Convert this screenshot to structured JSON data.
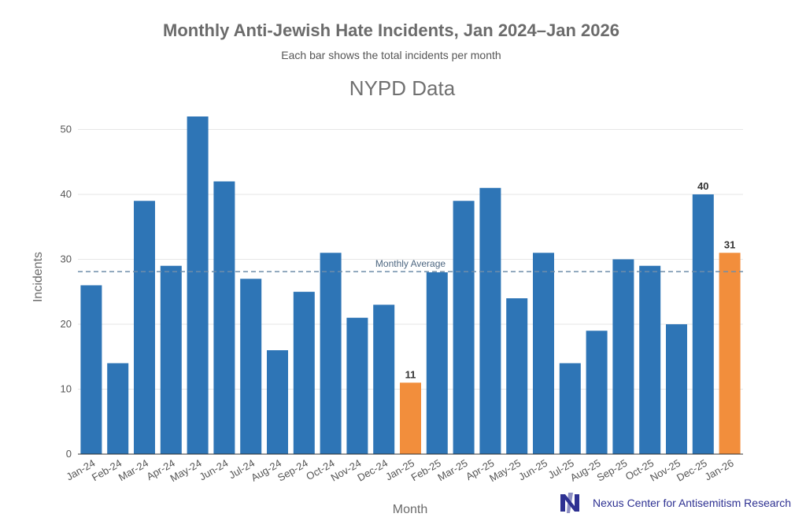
{
  "chart_data": {
    "type": "bar",
    "title": "Monthly Anti-Jewish Hate Incidents, Jan 2024–Jan 2026",
    "subtitle": "Each bar shows the total incidents per month",
    "panel_title": "NYPD Data",
    "xlabel": "Month",
    "ylabel": "Incidents",
    "ylim": [
      0,
      55
    ],
    "yticks": [
      0,
      10,
      20,
      30,
      40,
      50
    ],
    "grid": true,
    "categories": [
      "Jan-24",
      "Feb-24",
      "Mar-24",
      "Apr-24",
      "May-24",
      "Jun-24",
      "Jul-24",
      "Aug-24",
      "Sep-24",
      "Oct-24",
      "Nov-24",
      "Dec-24",
      "Jan-25",
      "Feb-25",
      "Mar-25",
      "Apr-25",
      "May-25",
      "Jun-25",
      "Jul-25",
      "Aug-25",
      "Sep-25",
      "Oct-25",
      "Nov-25",
      "Dec-25",
      "Jan-26"
    ],
    "values": [
      26,
      14,
      39,
      29,
      52,
      42,
      27,
      16,
      25,
      31,
      21,
      23,
      11,
      28,
      39,
      41,
      24,
      31,
      14,
      19,
      30,
      29,
      20,
      40,
      31
    ],
    "highlighted": [
      "Jan-25",
      "Jan-26"
    ],
    "data_labels": {
      "Jan-25": "11",
      "Dec-25": "40",
      "Jan-26": "31"
    },
    "average_line": {
      "label": "Monthly Average",
      "value": 28.1
    },
    "colors": {
      "bar": "#2e75b6",
      "highlight": "#f28e3c",
      "average": "#6f8eaa"
    }
  },
  "logo": {
    "text": "Nexus Center for Antisemitism Research",
    "icon": "nexus-logo-icon"
  }
}
